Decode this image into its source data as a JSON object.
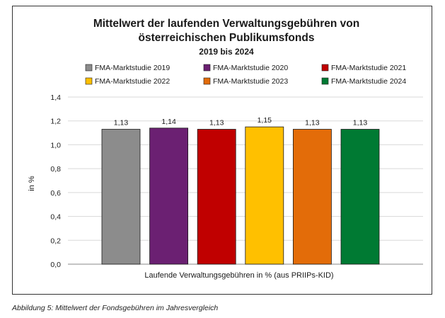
{
  "chart_data": {
    "type": "bar",
    "title": "Mittelwert der laufenden Verwaltungsgebühren von",
    "title_line2": "österreichischen Publikumsfonds",
    "subtitle": "2019 bis 2024",
    "xlabel": "Laufende Verwaltungsgebühren in % (aus PRIIPs-KID)",
    "ylabel": "in %",
    "ylim": [
      0,
      1.4
    ],
    "yticks": [
      "0,0",
      "0,2",
      "0,4",
      "0,6",
      "0,8",
      "1,0",
      "1,2",
      "1,4"
    ],
    "grid": true,
    "legend_position": "top",
    "series": [
      {
        "name": "FMA-Marktstudie 2019",
        "value": 1.13,
        "label": "1,13",
        "color": "#8c8c8c"
      },
      {
        "name": "FMA-Marktstudie 2020",
        "value": 1.14,
        "label": "1,14",
        "color": "#6b2072"
      },
      {
        "name": "FMA-Marktstudie 2021",
        "value": 1.13,
        "label": "1,13",
        "color": "#c00000"
      },
      {
        "name": "FMA-Marktstudie 2022",
        "value": 1.15,
        "label": "1,15",
        "color": "#ffc000"
      },
      {
        "name": "FMA-Marktstudie 2023",
        "value": 1.13,
        "label": "1,13",
        "color": "#e36c09"
      },
      {
        "name": "FMA-Marktstudie 2024",
        "value": 1.13,
        "label": "1,13",
        "color": "#007a33"
      }
    ]
  },
  "caption": "Abbildung 5: Mittelwert der Fondsgebühren im Jahresvergleich"
}
